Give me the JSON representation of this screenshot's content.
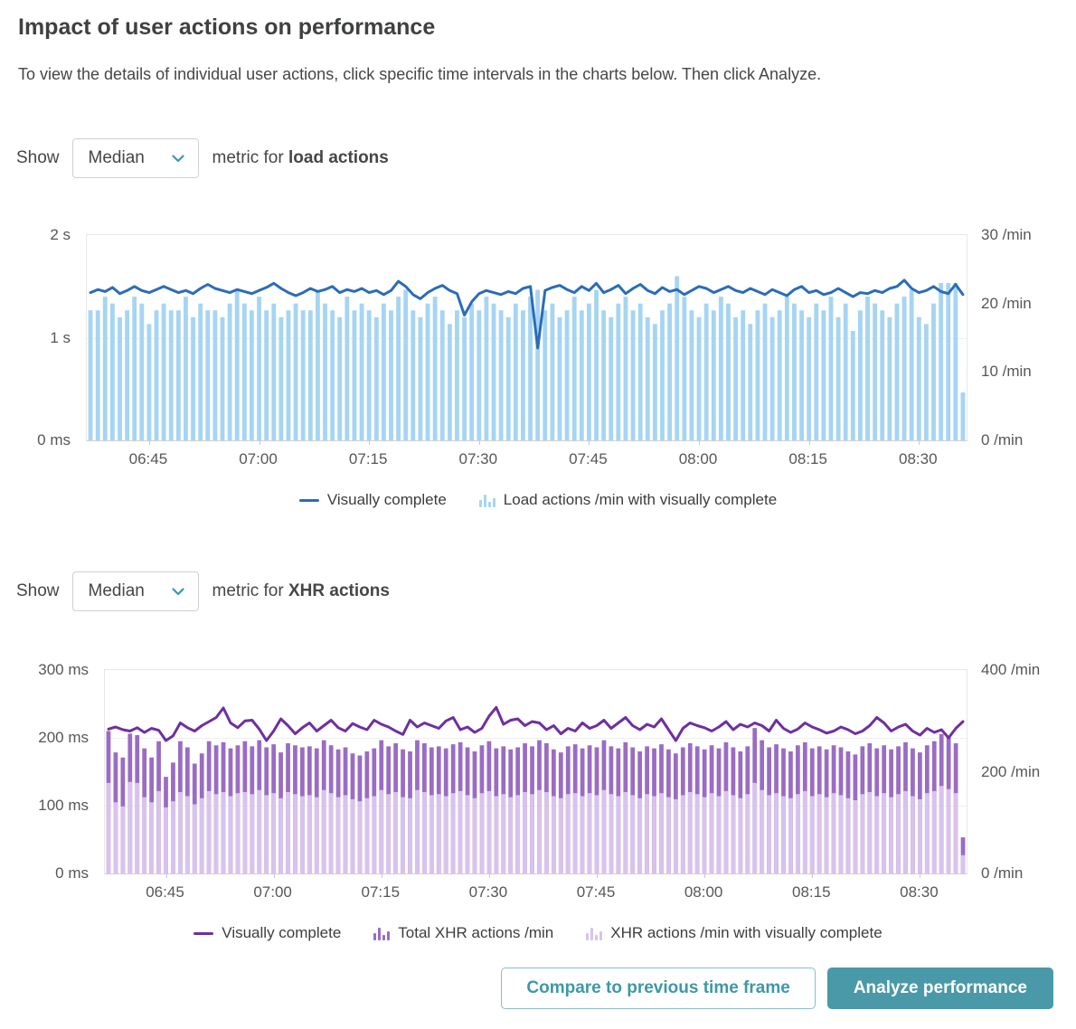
{
  "page": {
    "title": "Impact of user actions on performance",
    "subtitle": "To view the details of individual user actions, click specific time intervals in the charts below. Then click Analyze."
  },
  "controls": [
    {
      "show_label": "Show",
      "dropdown_value": "Median",
      "metric_prefix": "metric for",
      "metric_target": "load actions"
    },
    {
      "show_label": "Show",
      "dropdown_value": "Median",
      "metric_prefix": "metric for",
      "metric_target": "XHR actions"
    }
  ],
  "buttons": {
    "compare": "Compare to previous time frame",
    "analyze": "Analyze performance"
  },
  "colors": {
    "chart1_line": "#2b6cb8",
    "chart1_bar": "#a6d5f2",
    "chart2_line": "#6f2f9f",
    "chart2_bar_total": "#9a6cc3",
    "chart2_bar_vc": "#d9c3ec",
    "accent_teal": "#4a99a8",
    "text": "#454646",
    "axis_text": "#565757"
  },
  "chart_data": [
    {
      "id": "load-actions",
      "type": "bar",
      "x_start": "06:37",
      "x_interval_minutes": 1,
      "x_tick_labels": [
        "06:45",
        "07:00",
        "07:15",
        "07:30",
        "07:45",
        "08:00",
        "08:15",
        "08:30"
      ],
      "left_axis": {
        "unit": "duration_ms",
        "min": 0,
        "max": 2000,
        "ticks": [
          {
            "value": 0,
            "label": "0 ms"
          },
          {
            "value": 1000,
            "label": "1 s"
          },
          {
            "value": 2000,
            "label": "2 s"
          }
        ],
        "grid_values": [
          1000
        ]
      },
      "right_axis": {
        "unit": "per_min",
        "min": 0,
        "max": 30,
        "ticks": [
          {
            "value": 0,
            "label": "0 /min"
          },
          {
            "value": 10,
            "label": "10 /min"
          },
          {
            "value": 20,
            "label": "20 /min"
          },
          {
            "value": 30,
            "label": "30 /min"
          }
        ]
      },
      "series": [
        {
          "name": "Load actions /min with visually complete",
          "kind": "bar",
          "axis": "right",
          "color_key": "chart1_bar",
          "values": [
            19,
            19,
            21,
            20,
            18,
            19,
            21,
            20,
            17,
            19,
            20,
            19,
            19,
            21,
            18,
            20,
            19,
            19,
            18,
            20,
            22,
            20,
            19,
            21,
            19,
            20,
            18,
            19,
            20,
            19,
            19,
            22,
            20,
            19,
            18,
            21,
            19,
            20,
            19,
            18,
            20,
            19,
            21,
            22,
            19,
            18,
            20,
            21,
            19,
            17,
            19,
            18,
            20,
            19,
            21,
            20,
            19,
            18,
            20,
            19,
            21,
            22,
            19,
            20,
            18,
            19,
            21,
            19,
            20,
            22,
            19,
            18,
            20,
            21,
            19,
            20,
            18,
            17,
            19,
            20,
            24,
            21,
            19,
            18,
            20,
            19,
            21,
            20,
            18,
            19,
            17,
            19,
            20,
            18,
            19,
            21,
            20,
            19,
            18,
            20,
            19,
            21,
            18,
            20,
            16,
            19,
            21,
            20,
            19,
            18,
            20,
            21,
            22,
            18,
            17,
            20,
            23,
            23,
            23,
            7
          ]
        },
        {
          "name": "Visually complete",
          "kind": "line",
          "axis": "left",
          "color_key": "chart1_line",
          "values": [
            1440,
            1470,
            1450,
            1490,
            1430,
            1460,
            1500,
            1460,
            1440,
            1470,
            1500,
            1470,
            1440,
            1460,
            1430,
            1480,
            1520,
            1480,
            1460,
            1440,
            1470,
            1450,
            1430,
            1460,
            1490,
            1530,
            1480,
            1440,
            1410,
            1440,
            1480,
            1450,
            1470,
            1500,
            1440,
            1470,
            1450,
            1480,
            1440,
            1460,
            1420,
            1460,
            1550,
            1500,
            1420,
            1380,
            1440,
            1480,
            1510,
            1460,
            1430,
            1220,
            1350,
            1430,
            1460,
            1440,
            1420,
            1450,
            1430,
            1480,
            1500,
            900,
            1460,
            1490,
            1510,
            1470,
            1440,
            1500,
            1460,
            1530,
            1440,
            1470,
            1510,
            1430,
            1480,
            1520,
            1460,
            1430,
            1490,
            1450,
            1470,
            1420,
            1460,
            1500,
            1480,
            1440,
            1470,
            1500,
            1460,
            1440,
            1480,
            1450,
            1420,
            1470,
            1440,
            1410,
            1470,
            1500,
            1440,
            1460,
            1420,
            1440,
            1480,
            1440,
            1400,
            1440,
            1430,
            1460,
            1440,
            1480,
            1500,
            1560,
            1480,
            1440,
            1460,
            1500,
            1450,
            1430,
            1520,
            1420
          ]
        }
      ],
      "legend": [
        {
          "label": "Visually complete",
          "swatch": "line",
          "color_key": "chart1_line"
        },
        {
          "label": "Load actions /min with visually complete",
          "swatch": "bars",
          "color_key": "chart1_bar"
        }
      ]
    },
    {
      "id": "xhr-actions",
      "type": "bar",
      "x_start": "06:37",
      "x_interval_minutes": 1,
      "x_tick_labels": [
        "06:45",
        "07:00",
        "07:15",
        "07:30",
        "07:45",
        "08:00",
        "08:15",
        "08:30"
      ],
      "left_axis": {
        "unit": "duration_ms",
        "min": 0,
        "max": 300,
        "ticks": [
          {
            "value": 0,
            "label": "0 ms"
          },
          {
            "value": 100,
            "label": "100 ms"
          },
          {
            "value": 200,
            "label": "200 ms"
          },
          {
            "value": 300,
            "label": "300 ms"
          }
        ],
        "grid_values": [
          100,
          200
        ]
      },
      "right_axis": {
        "unit": "per_min",
        "min": 0,
        "max": 400,
        "ticks": [
          {
            "value": 0,
            "label": "0 /min"
          },
          {
            "value": 200,
            "label": "200 /min"
          },
          {
            "value": 400,
            "label": "400 /min"
          }
        ]
      },
      "series": [
        {
          "name": "Total XHR actions /min",
          "kind": "bar",
          "axis": "right",
          "color_key": "chart2_bar_total",
          "values": [
            280,
            238,
            228,
            275,
            272,
            246,
            228,
            260,
            190,
            218,
            260,
            248,
            216,
            236,
            260,
            252,
            258,
            246,
            252,
            260,
            250,
            262,
            248,
            254,
            238,
            256,
            252,
            248,
            250,
            246,
            262,
            252,
            244,
            248,
            236,
            232,
            240,
            246,
            262,
            250,
            256,
            244,
            240,
            262,
            256,
            248,
            250,
            246,
            254,
            258,
            248,
            240,
            252,
            260,
            246,
            250,
            244,
            248,
            256,
            250,
            262,
            256,
            244,
            238,
            250,
            254,
            246,
            252,
            248,
            262,
            250,
            246,
            258,
            248,
            240,
            250,
            246,
            254,
            244,
            236,
            248,
            256,
            250,
            244,
            252,
            246,
            258,
            248,
            240,
            250,
            286,
            262,
            248,
            254,
            246,
            240,
            252,
            258,
            246,
            250,
            244,
            252,
            248,
            240,
            234,
            250,
            256,
            246,
            252,
            244,
            250,
            258,
            246,
            238,
            252,
            260,
            274,
            268,
            256,
            71
          ]
        },
        {
          "name": "XHR actions /min with visually complete",
          "kind": "bar",
          "axis": "right",
          "color_key": "chart2_bar_vc",
          "values": [
            178,
            140,
            132,
            180,
            178,
            150,
            140,
            162,
            130,
            142,
            160,
            152,
            136,
            148,
            162,
            156,
            160,
            152,
            158,
            160,
            156,
            164,
            154,
            158,
            148,
            160,
            156,
            152,
            154,
            150,
            164,
            158,
            150,
            154,
            146,
            142,
            148,
            152,
            164,
            156,
            160,
            150,
            148,
            164,
            160,
            154,
            156,
            152,
            158,
            162,
            154,
            148,
            158,
            162,
            152,
            156,
            150,
            154,
            160,
            156,
            164,
            160,
            152,
            148,
            156,
            158,
            152,
            158,
            154,
            164,
            156,
            152,
            160,
            154,
            148,
            156,
            152,
            158,
            150,
            146,
            154,
            160,
            156,
            150,
            158,
            152,
            162,
            154,
            148,
            156,
            178,
            164,
            154,
            158,
            152,
            148,
            156,
            162,
            152,
            156,
            150,
            158,
            154,
            148,
            144,
            156,
            160,
            152,
            158,
            150,
            156,
            162,
            152,
            146,
            158,
            162,
            172,
            166,
            158,
            36
          ]
        },
        {
          "name": "Visually complete",
          "kind": "line",
          "axis": "left",
          "color_key": "chart2_line",
          "values": [
            213,
            216,
            212,
            210,
            215,
            208,
            214,
            211,
            196,
            203,
            222,
            215,
            210,
            218,
            224,
            230,
            244,
            222,
            215,
            225,
            226,
            213,
            196,
            210,
            228,
            218,
            206,
            215,
            222,
            210,
            218,
            226,
            215,
            210,
            221,
            216,
            212,
            226,
            220,
            216,
            210,
            205,
            226,
            216,
            222,
            218,
            214,
            225,
            230,
            212,
            216,
            208,
            214,
            232,
            245,
            220,
            226,
            228,
            218,
            224,
            222,
            212,
            218,
            206,
            214,
            210,
            222,
            214,
            218,
            226,
            214,
            222,
            230,
            218,
            212,
            220,
            216,
            228,
            212,
            196,
            214,
            222,
            218,
            215,
            210,
            216,
            224,
            212,
            220,
            216,
            222,
            218,
            210,
            226,
            214,
            208,
            213,
            222,
            216,
            212,
            207,
            210,
            216,
            212,
            206,
            210,
            218,
            230,
            222,
            210,
            216,
            220,
            210,
            204,
            214,
            208,
            212,
            200,
            214,
            224
          ]
        }
      ],
      "legend": [
        {
          "label": "Visually complete",
          "swatch": "line",
          "color_key": "chart2_line"
        },
        {
          "label": "Total XHR actions /min",
          "swatch": "bars",
          "color_key": "chart2_bar_total"
        },
        {
          "label": "XHR actions /min with visually complete",
          "swatch": "bars",
          "color_key": "chart2_bar_vc"
        }
      ]
    }
  ]
}
